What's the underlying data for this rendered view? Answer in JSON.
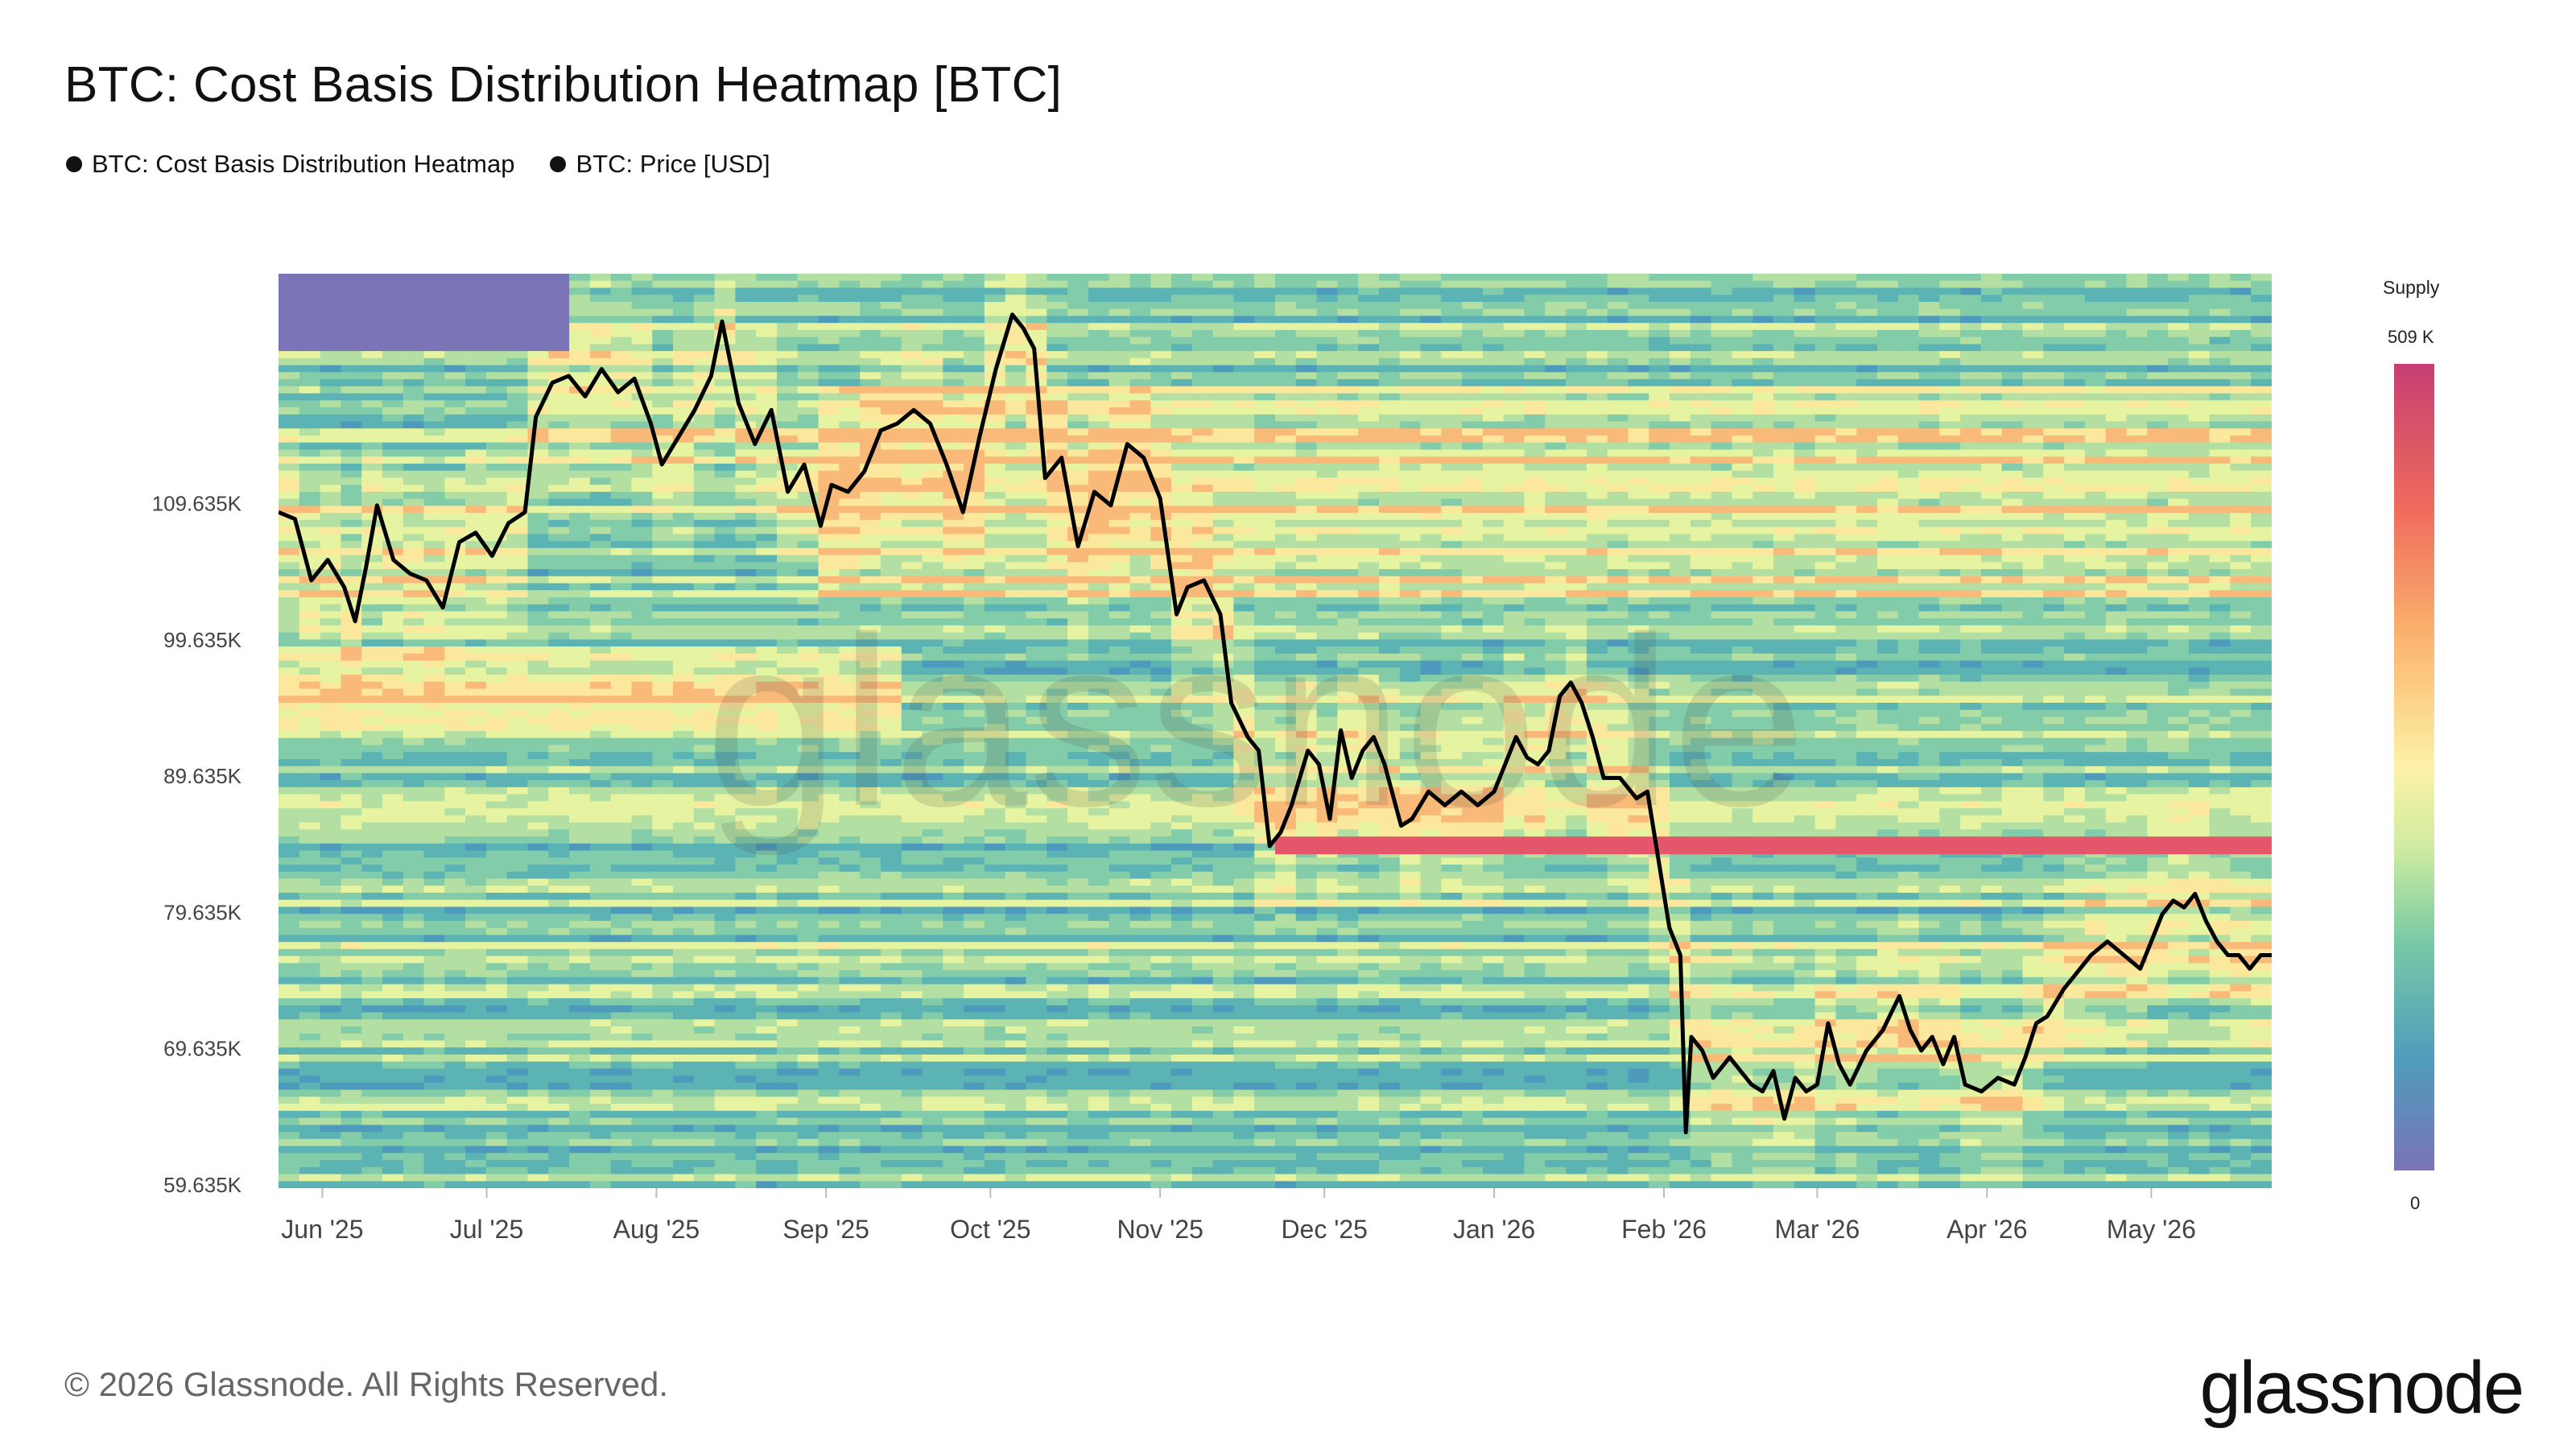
{
  "title": "BTC: Cost Basis Distribution Heatmap [BTC]",
  "legend": [
    {
      "label": "BTC: Cost Basis Distribution Heatmap",
      "color": "#111111"
    },
    {
      "label": "BTC: Price [USD]",
      "color": "#111111"
    }
  ],
  "colorbar": {
    "title": "Supply",
    "max_label": "509 K",
    "min_label": "0",
    "colors": [
      "#c63f72",
      "#ef6b5c",
      "#fbb46e",
      "#fdf2a7",
      "#cfeba2",
      "#76c9a5",
      "#4f9dbd",
      "#7a73b5"
    ]
  },
  "watermark": "glassnode",
  "footer": "© 2026 Glassnode. All Rights Reserved.",
  "brand": "glassnode",
  "chart_data": {
    "type": "heatmap",
    "x_tick_labels": [
      "Jun '25",
      "Jul '25",
      "Aug '25",
      "Sep '25",
      "Oct '25",
      "Nov '25",
      "Dec '25",
      "Jan '26",
      "Feb '26",
      "Mar '26",
      "Apr '26",
      "May '26"
    ],
    "x_tick_dates": [
      "2025-06-01",
      "2025-07-01",
      "2025-08-01",
      "2025-09-01",
      "2025-10-01",
      "2025-11-01",
      "2025-12-01",
      "2026-01-01",
      "2026-02-01",
      "2026-03-01",
      "2026-04-01",
      "2026-05-01"
    ],
    "x_range": [
      "2025-05-24",
      "2026-05-23"
    ],
    "y_tick_labels": [
      "59.635K",
      "69.635K",
      "79.635K",
      "89.635K",
      "99.635K",
      "109.635K"
    ],
    "y_ticks": [
      59635,
      69635,
      79635,
      89635,
      99635,
      109635
    ],
    "ylim": [
      59400,
      126500
    ],
    "price_series": {
      "name": "BTC: Price [USD]",
      "color": "#000000",
      "points": [
        [
          "2025-05-24",
          109000
        ],
        [
          "2025-05-27",
          108500
        ],
        [
          "2025-05-30",
          104000
        ],
        [
          "2025-06-02",
          105500
        ],
        [
          "2025-06-05",
          103500
        ],
        [
          "2025-06-07",
          101000
        ],
        [
          "2025-06-09",
          105000
        ],
        [
          "2025-06-11",
          109500
        ],
        [
          "2025-06-14",
          105500
        ],
        [
          "2025-06-17",
          104500
        ],
        [
          "2025-06-20",
          104000
        ],
        [
          "2025-06-23",
          102000
        ],
        [
          "2025-06-26",
          106800
        ],
        [
          "2025-06-29",
          107500
        ],
        [
          "2025-07-02",
          105800
        ],
        [
          "2025-07-05",
          108200
        ],
        [
          "2025-07-08",
          109000
        ],
        [
          "2025-07-10",
          116000
        ],
        [
          "2025-07-13",
          118500
        ],
        [
          "2025-07-16",
          119000
        ],
        [
          "2025-07-19",
          117500
        ],
        [
          "2025-07-22",
          119500
        ],
        [
          "2025-07-25",
          117800
        ],
        [
          "2025-07-28",
          118800
        ],
        [
          "2025-07-31",
          115500
        ],
        [
          "2025-08-02",
          112500
        ],
        [
          "2025-08-05",
          114500
        ],
        [
          "2025-08-08",
          116500
        ],
        [
          "2025-08-11",
          119000
        ],
        [
          "2025-08-13",
          123000
        ],
        [
          "2025-08-16",
          117000
        ],
        [
          "2025-08-19",
          114000
        ],
        [
          "2025-08-22",
          116500
        ],
        [
          "2025-08-25",
          110500
        ],
        [
          "2025-08-28",
          112500
        ],
        [
          "2025-08-31",
          108000
        ],
        [
          "2025-09-02",
          111000
        ],
        [
          "2025-09-05",
          110500
        ],
        [
          "2025-09-08",
          112000
        ],
        [
          "2025-09-11",
          115000
        ],
        [
          "2025-09-14",
          115500
        ],
        [
          "2025-09-17",
          116500
        ],
        [
          "2025-09-20",
          115500
        ],
        [
          "2025-09-23",
          112500
        ],
        [
          "2025-09-26",
          109000
        ],
        [
          "2025-09-29",
          114500
        ],
        [
          "2025-10-02",
          119500
        ],
        [
          "2025-10-05",
          123500
        ],
        [
          "2025-10-07",
          122500
        ],
        [
          "2025-10-09",
          121000
        ],
        [
          "2025-10-11",
          111500
        ],
        [
          "2025-10-14",
          113000
        ],
        [
          "2025-10-17",
          106500
        ],
        [
          "2025-10-20",
          110500
        ],
        [
          "2025-10-23",
          109500
        ],
        [
          "2025-10-26",
          114000
        ],
        [
          "2025-10-29",
          113000
        ],
        [
          "2025-11-01",
          110000
        ],
        [
          "2025-11-04",
          101500
        ],
        [
          "2025-11-06",
          103500
        ],
        [
          "2025-11-09",
          104000
        ],
        [
          "2025-11-12",
          101500
        ],
        [
          "2025-11-14",
          95000
        ],
        [
          "2025-11-17",
          92500
        ],
        [
          "2025-11-19",
          91500
        ],
        [
          "2025-11-21",
          84500
        ],
        [
          "2025-11-23",
          85500
        ],
        [
          "2025-11-25",
          87500
        ],
        [
          "2025-11-28",
          91500
        ],
        [
          "2025-11-30",
          90500
        ],
        [
          "2025-12-02",
          86500
        ],
        [
          "2025-12-04",
          93000
        ],
        [
          "2025-12-06",
          89500
        ],
        [
          "2025-12-08",
          91500
        ],
        [
          "2025-12-10",
          92500
        ],
        [
          "2025-12-12",
          90500
        ],
        [
          "2025-12-15",
          86000
        ],
        [
          "2025-12-17",
          86500
        ],
        [
          "2025-12-20",
          88500
        ],
        [
          "2025-12-23",
          87500
        ],
        [
          "2025-12-26",
          88500
        ],
        [
          "2025-12-29",
          87500
        ],
        [
          "2026-01-01",
          88500
        ],
        [
          "2026-01-03",
          90500
        ],
        [
          "2026-01-05",
          92500
        ],
        [
          "2026-01-07",
          91000
        ],
        [
          "2026-01-09",
          90500
        ],
        [
          "2026-01-11",
          91500
        ],
        [
          "2026-01-13",
          95500
        ],
        [
          "2026-01-15",
          96500
        ],
        [
          "2026-01-17",
          95000
        ],
        [
          "2026-01-19",
          92500
        ],
        [
          "2026-01-21",
          89500
        ],
        [
          "2026-01-24",
          89500
        ],
        [
          "2026-01-27",
          88000
        ],
        [
          "2026-01-29",
          88500
        ],
        [
          "2026-01-31",
          83500
        ],
        [
          "2026-02-02",
          78500
        ],
        [
          "2026-02-04",
          76500
        ],
        [
          "2026-02-05",
          63500
        ],
        [
          "2026-02-06",
          70500
        ],
        [
          "2026-02-08",
          69500
        ],
        [
          "2026-02-10",
          67500
        ],
        [
          "2026-02-13",
          69000
        ],
        [
          "2026-02-15",
          68000
        ],
        [
          "2026-02-17",
          67000
        ],
        [
          "2026-02-19",
          66500
        ],
        [
          "2026-02-21",
          68000
        ],
        [
          "2026-02-23",
          64500
        ],
        [
          "2026-02-25",
          67500
        ],
        [
          "2026-02-27",
          66500
        ],
        [
          "2026-03-01",
          67000
        ],
        [
          "2026-03-03",
          71500
        ],
        [
          "2026-03-05",
          68500
        ],
        [
          "2026-03-07",
          67000
        ],
        [
          "2026-03-10",
          69500
        ],
        [
          "2026-03-13",
          71000
        ],
        [
          "2026-03-16",
          73500
        ],
        [
          "2026-03-18",
          71000
        ],
        [
          "2026-03-20",
          69500
        ],
        [
          "2026-03-22",
          70500
        ],
        [
          "2026-03-24",
          68500
        ],
        [
          "2026-03-26",
          70500
        ],
        [
          "2026-03-28",
          67000
        ],
        [
          "2026-03-31",
          66500
        ],
        [
          "2026-04-03",
          67500
        ],
        [
          "2026-04-06",
          67000
        ],
        [
          "2026-04-08",
          69000
        ],
        [
          "2026-04-10",
          71500
        ],
        [
          "2026-04-12",
          72000
        ],
        [
          "2026-04-15",
          74000
        ],
        [
          "2026-04-17",
          75000
        ],
        [
          "2026-04-20",
          76500
        ],
        [
          "2026-04-23",
          77500
        ],
        [
          "2026-04-26",
          76500
        ],
        [
          "2026-04-29",
          75500
        ],
        [
          "2026-05-01",
          77500
        ],
        [
          "2026-05-03",
          79500
        ],
        [
          "2026-05-05",
          80500
        ],
        [
          "2026-05-07",
          80000
        ],
        [
          "2026-05-09",
          81000
        ],
        [
          "2026-05-11",
          79000
        ],
        [
          "2026-05-13",
          77500
        ],
        [
          "2026-05-15",
          76500
        ],
        [
          "2026-05-17",
          76500
        ],
        [
          "2026-05-19",
          75500
        ],
        [
          "2026-05-21",
          76500
        ],
        [
          "2026-05-23",
          76500
        ]
      ]
    }
  }
}
